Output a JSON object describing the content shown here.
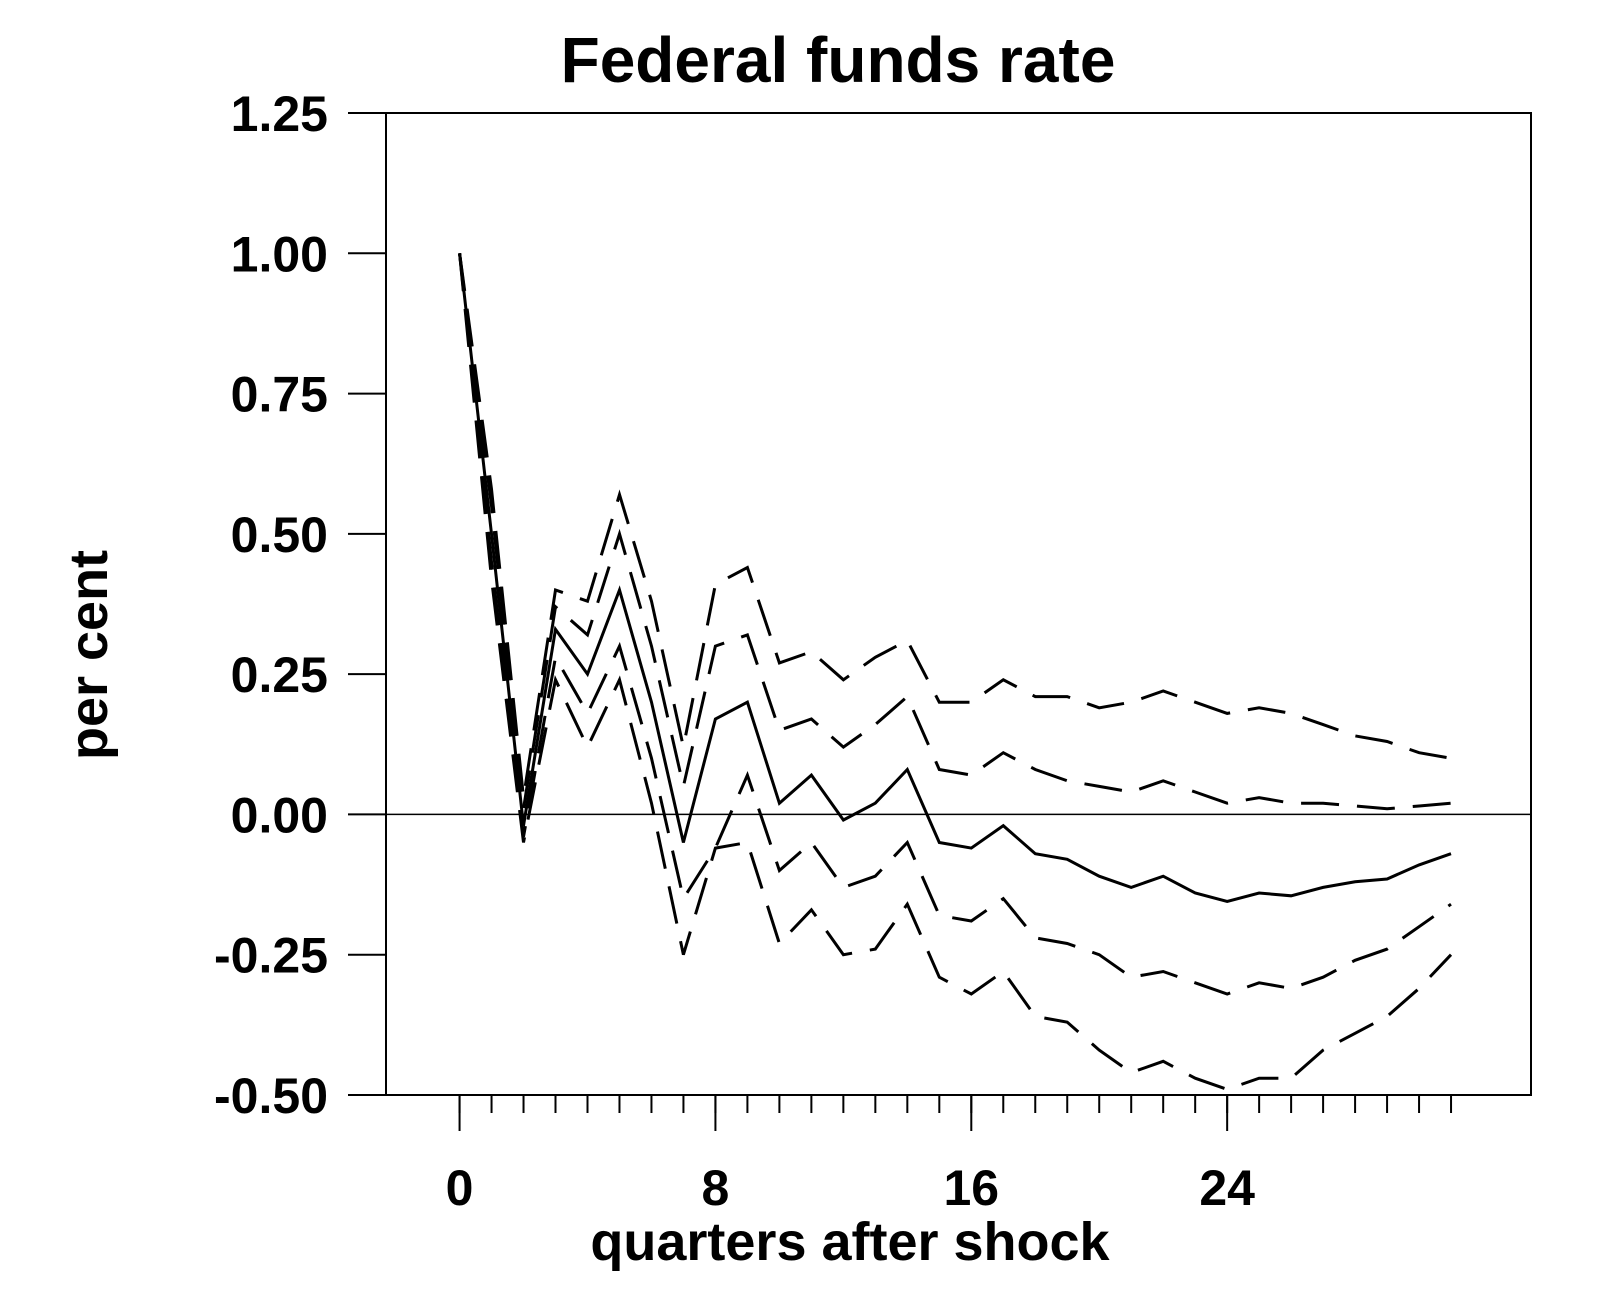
{
  "chart_data": {
    "type": "line",
    "title": "Federal funds rate",
    "xlabel": "quarters after shock",
    "ylabel": "per cent",
    "xlim": [
      -2.3,
      33.5
    ],
    "ylim": [
      -0.5,
      1.25
    ],
    "x_ticks": [
      0,
      8,
      16,
      24
    ],
    "x_tick_labels": [
      "0",
      "8",
      "16",
      "24"
    ],
    "x_minor_ticks": [
      0,
      1,
      2,
      3,
      4,
      5,
      6,
      7,
      8,
      9,
      10,
      11,
      12,
      13,
      14,
      15,
      16,
      17,
      18,
      19,
      20,
      21,
      22,
      23,
      24,
      25,
      26,
      27,
      28,
      29,
      30,
      31
    ],
    "y_ticks": [
      -0.5,
      -0.25,
      0.0,
      0.25,
      0.5,
      0.75,
      1.0,
      1.25
    ],
    "y_tick_labels": [
      "-0.50",
      "-0.25",
      "0.00",
      "0.25",
      "0.50",
      "0.75",
      "1.00",
      "1.25"
    ],
    "zero_line": true,
    "grid": false,
    "x": [
      0,
      1,
      2,
      3,
      4,
      5,
      6,
      7,
      8,
      9,
      10,
      11,
      12,
      13,
      14,
      15,
      16,
      17,
      18,
      19,
      20,
      21,
      22,
      23,
      24,
      25,
      26,
      27,
      28,
      29,
      30,
      31
    ],
    "series": [
      {
        "style": "solid",
        "values": [
          1.0,
          0.5,
          -0.02,
          0.33,
          0.25,
          0.4,
          0.2,
          -0.05,
          0.17,
          0.2,
          0.02,
          0.07,
          -0.01,
          0.02,
          0.08,
          -0.05,
          -0.06,
          -0.02,
          -0.07,
          -0.08,
          -0.11,
          -0.13,
          -0.11,
          -0.14,
          -0.155,
          -0.14,
          -0.145,
          -0.13,
          -0.12,
          -0.115,
          -0.09,
          -0.07
        ]
      },
      {
        "style": "dashed",
        "values": [
          1.0,
          0.55,
          0.01,
          0.37,
          0.32,
          0.5,
          0.3,
          0.05,
          0.3,
          0.32,
          0.15,
          0.17,
          0.12,
          0.16,
          0.21,
          0.08,
          0.07,
          0.11,
          0.08,
          0.06,
          0.05,
          0.04,
          0.06,
          0.04,
          0.02,
          0.03,
          0.02,
          0.02,
          0.015,
          0.01,
          0.015,
          0.02
        ]
      },
      {
        "style": "dashed",
        "values": [
          1.0,
          0.58,
          0.03,
          0.4,
          0.38,
          0.57,
          0.38,
          0.12,
          0.41,
          0.44,
          0.27,
          0.29,
          0.24,
          0.28,
          0.31,
          0.2,
          0.2,
          0.24,
          0.21,
          0.21,
          0.19,
          0.2,
          0.22,
          0.2,
          0.18,
          0.19,
          0.18,
          0.16,
          0.14,
          0.13,
          0.11,
          0.1
        ]
      },
      {
        "style": "dashed",
        "values": [
          1.0,
          0.45,
          -0.04,
          0.28,
          0.18,
          0.3,
          0.1,
          -0.15,
          -0.06,
          0.07,
          -0.1,
          -0.05,
          -0.13,
          -0.11,
          -0.05,
          -0.18,
          -0.19,
          -0.15,
          -0.22,
          -0.23,
          -0.25,
          -0.29,
          -0.28,
          -0.3,
          -0.32,
          -0.3,
          -0.31,
          -0.29,
          -0.26,
          -0.24,
          -0.2,
          -0.16
        ]
      },
      {
        "style": "dashed",
        "values": [
          1.0,
          0.42,
          -0.05,
          0.24,
          0.12,
          0.24,
          0.02,
          -0.25,
          -0.06,
          -0.05,
          -0.23,
          -0.17,
          -0.25,
          -0.24,
          -0.16,
          -0.29,
          -0.32,
          -0.28,
          -0.36,
          -0.37,
          -0.42,
          -0.46,
          -0.44,
          -0.47,
          -0.49,
          -0.47,
          -0.47,
          -0.42,
          -0.39,
          -0.36,
          -0.31,
          -0.25
        ]
      }
    ]
  }
}
